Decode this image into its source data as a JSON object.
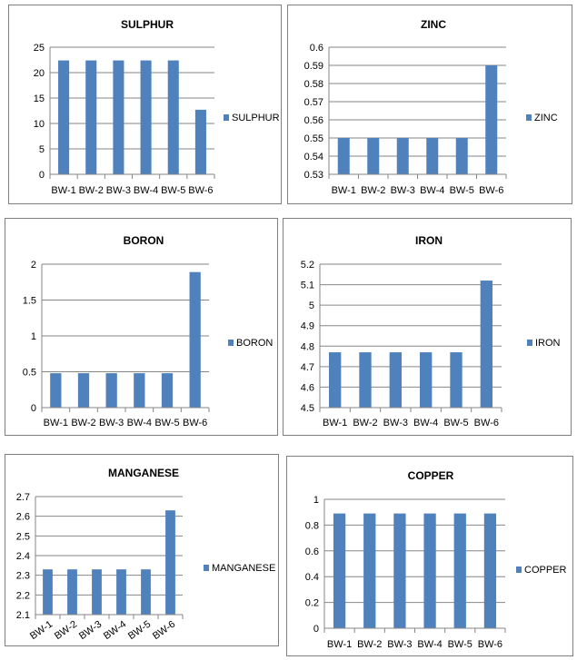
{
  "bar_color": "#4f81bd",
  "chart_data": [
    {
      "type": "bar",
      "title": "SULPHUR",
      "categories": [
        "BW-1",
        "BW-2",
        "BW-3",
        "BW-4",
        "BW-5",
        "BW-6"
      ],
      "series": [
        {
          "name": "SULPHUR",
          "values": [
            22.4,
            22.4,
            22.4,
            22.4,
            22.4,
            12.7
          ]
        }
      ],
      "ylim": [
        0,
        25
      ],
      "yticks": [
        "0",
        "5",
        "10",
        "15",
        "20",
        "25"
      ],
      "grid": true,
      "legend": "right"
    },
    {
      "type": "bar",
      "title": "ZINC",
      "categories": [
        "BW-1",
        "BW-2",
        "BW-3",
        "BW-4",
        "BW-5",
        "BW-6"
      ],
      "series": [
        {
          "name": "ZINC",
          "values": [
            0.55,
            0.55,
            0.55,
            0.55,
            0.55,
            0.59
          ]
        }
      ],
      "ylim": [
        0.53,
        0.6
      ],
      "yticks": [
        "0.53",
        "0.54",
        "0.55",
        "0.56",
        "0.57",
        "0.58",
        "0.59",
        "0.6"
      ],
      "grid": true,
      "legend": "right"
    },
    {
      "type": "bar",
      "title": "BORON",
      "categories": [
        "BW-1",
        "BW-2",
        "BW-3",
        "BW-4",
        "BW-5",
        "BW-6"
      ],
      "series": [
        {
          "name": "BORON",
          "values": [
            0.48,
            0.48,
            0.48,
            0.48,
            0.48,
            1.89
          ]
        }
      ],
      "ylim": [
        0,
        2
      ],
      "yticks": [
        "0",
        "0.5",
        "1",
        "1.5",
        "2"
      ],
      "grid": true,
      "legend": "right"
    },
    {
      "type": "bar",
      "title": "IRON",
      "categories": [
        "BW-1",
        "BW-2",
        "BW-3",
        "BW-4",
        "BW-5",
        "BW-6"
      ],
      "series": [
        {
          "name": "IRON",
          "values": [
            4.77,
            4.77,
            4.77,
            4.77,
            4.77,
            5.12
          ]
        }
      ],
      "ylim": [
        4.5,
        5.2
      ],
      "yticks": [
        "4.5",
        "4.6",
        "4.7",
        "4.8",
        "4.9",
        "5",
        "5.1",
        "5.2"
      ],
      "grid": true,
      "legend": "right"
    },
    {
      "type": "bar",
      "title": "MANGANESE",
      "categories": [
        "BW-1",
        "BW-2",
        "BW-3",
        "BW-4",
        "BW-5",
        "BW-6"
      ],
      "series": [
        {
          "name": "MANGANESE",
          "values": [
            2.33,
            2.33,
            2.33,
            2.33,
            2.33,
            2.63
          ]
        }
      ],
      "ylim": [
        2.1,
        2.7
      ],
      "yticks": [
        "2.1",
        "2.2",
        "2.3",
        "2.4",
        "2.5",
        "2.6",
        "2.7"
      ],
      "grid": true,
      "legend": "right"
    },
    {
      "type": "bar",
      "title": "COPPER",
      "categories": [
        "BW-1",
        "BW-2",
        "BW-3",
        "BW-4",
        "BW-5",
        "BW-6"
      ],
      "series": [
        {
          "name": "COPPER",
          "values": [
            0.89,
            0.89,
            0.89,
            0.89,
            0.89,
            0.89
          ]
        }
      ],
      "ylim": [
        0,
        1
      ],
      "yticks": [
        "0",
        "0.2",
        "0.4",
        "0.6",
        "0.8",
        "1"
      ],
      "grid": true,
      "legend": "right"
    }
  ]
}
